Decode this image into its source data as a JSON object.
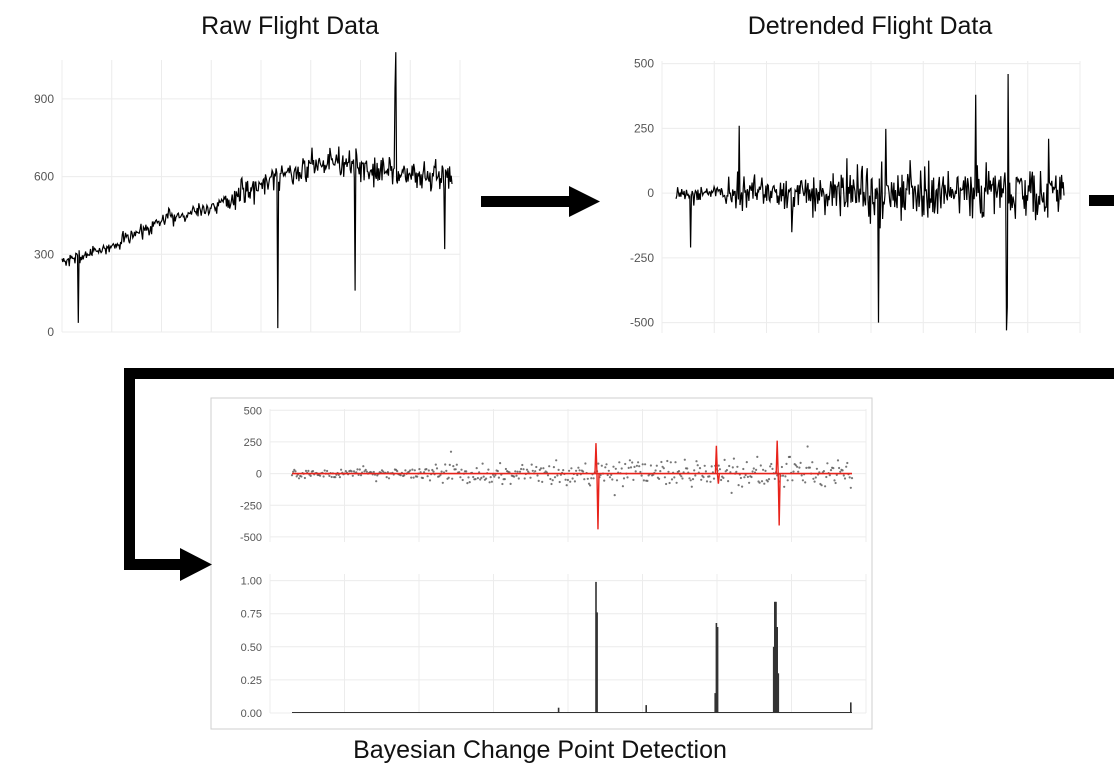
{
  "titles": {
    "raw": "Raw Flight Data",
    "detrended": "Detrended Flight Data",
    "bayes": "Bayesian Change Point Detection"
  },
  "colors": {
    "line": "#000000",
    "grid": "#ececec",
    "points": "#555555",
    "changepoint": "#e8231b",
    "arrow": "#000000"
  },
  "chart_data": [
    {
      "id": "raw",
      "type": "line",
      "title": "Raw Flight Data",
      "ylim": [
        0,
        1050
      ],
      "yticks": [
        0,
        300,
        600,
        900
      ],
      "grid": true,
      "n": 480,
      "trend": [
        [
          0,
          270
        ],
        [
          60,
          330
        ],
        [
          120,
          430
        ],
        [
          200,
          500
        ],
        [
          260,
          600
        ],
        [
          330,
          660
        ],
        [
          420,
          610
        ],
        [
          480,
          600
        ]
      ],
      "spikes": [
        [
          20,
          35
        ],
        [
          265,
          15
        ],
        [
          360,
          160
        ],
        [
          410,
          1080
        ],
        [
          409,
          940
        ],
        [
          470,
          320
        ]
      ]
    },
    {
      "id": "detrended",
      "type": "line",
      "title": "Detrended Flight Data",
      "ylim": [
        -540,
        510
      ],
      "yticks": [
        -500,
        -250,
        0,
        250,
        500
      ],
      "grid": true,
      "n": 480,
      "spikes": [
        [
          18,
          -210
        ],
        [
          78,
          260
        ],
        [
          250,
          350
        ],
        [
          250,
          -500
        ],
        [
          370,
          380
        ],
        [
          410,
          460
        ],
        [
          408,
          -530
        ],
        [
          409,
          -440
        ],
        [
          460,
          210
        ]
      ]
    },
    {
      "id": "bayes-posterior-mean",
      "type": "scatter",
      "ylim": [
        -540,
        510
      ],
      "yticks": [
        -500,
        -250,
        0,
        250,
        500
      ],
      "grid": true,
      "n": 480,
      "changepoints": [
        [
          260,
          240,
          -440
        ],
        [
          363,
          220,
          -80
        ],
        [
          415,
          260,
          -410
        ]
      ]
    },
    {
      "id": "bayes-probability",
      "type": "bar",
      "ylim": [
        0,
        1.05
      ],
      "yticks": [
        0.0,
        0.25,
        0.5,
        0.75,
        1.0
      ],
      "ytick_labels": [
        "0.00",
        "0.25",
        "0.50",
        "0.75",
        "1.00"
      ],
      "grid": true,
      "n": 480,
      "peaks": [
        [
          228,
          0.04
        ],
        [
          260,
          0.99
        ],
        [
          261,
          0.76
        ],
        [
          303,
          0.06
        ],
        [
          362,
          0.15
        ],
        [
          363,
          0.68
        ],
        [
          364,
          0.65
        ],
        [
          412,
          0.5
        ],
        [
          413,
          0.84
        ],
        [
          414,
          0.84
        ],
        [
          415,
          0.65
        ],
        [
          416,
          0.3
        ],
        [
          478,
          0.08
        ]
      ]
    }
  ]
}
